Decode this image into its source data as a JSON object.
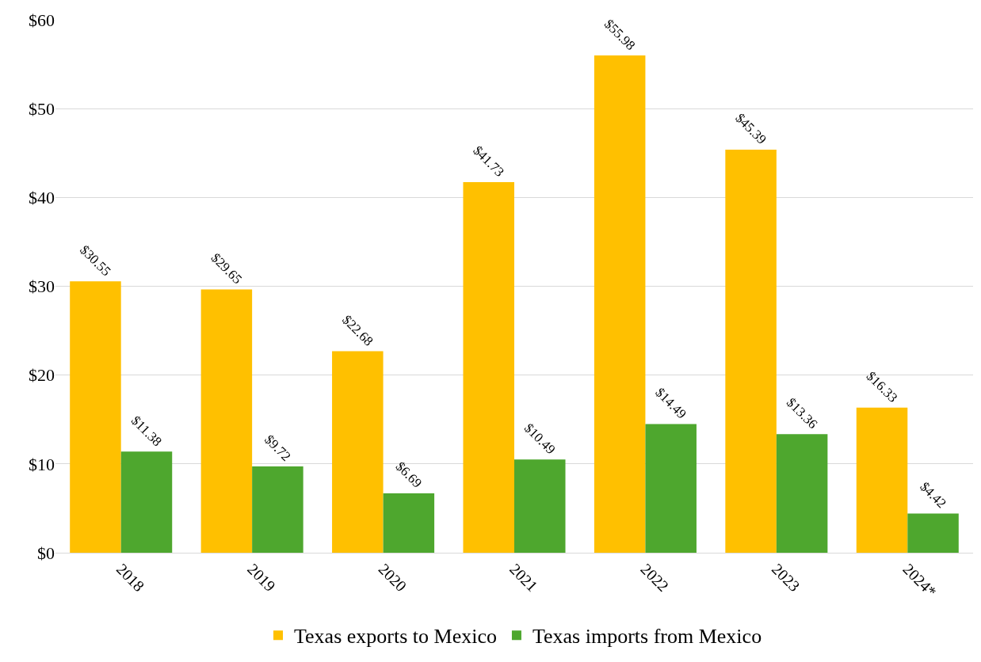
{
  "chart_data": {
    "type": "bar",
    "categories": [
      "2018",
      "2019",
      "2020",
      "2021",
      "2022",
      "2023",
      "2024*"
    ],
    "series": [
      {
        "name": "Texas exports to Mexico",
        "color": "#ffc000",
        "values": [
          30.55,
          29.65,
          22.68,
          41.73,
          55.98,
          45.39,
          16.33
        ],
        "value_labels": [
          "$30.55",
          "$29.65",
          "$22.68",
          "$41.73",
          "$55.98",
          "$45.39",
          "$16.33"
        ]
      },
      {
        "name": "Texas imports from Mexico",
        "color": "#4ea72e",
        "values": [
          11.38,
          9.72,
          6.69,
          10.49,
          14.49,
          13.36,
          4.42
        ],
        "value_labels": [
          "$11.38",
          "$9.72",
          "$6.69",
          "$10.49",
          "$14.49",
          "$13.36",
          "$4.42"
        ]
      }
    ],
    "ylim": [
      0,
      60
    ],
    "yticks": [
      {
        "value": 0,
        "label": "$0"
      },
      {
        "value": 10,
        "label": "$10"
      },
      {
        "value": 20,
        "label": "$20"
      },
      {
        "value": 30,
        "label": "$30"
      },
      {
        "value": 40,
        "label": "$40"
      },
      {
        "value": 50,
        "label": "$50"
      },
      {
        "value": 60,
        "label": "$60"
      }
    ],
    "grid": "y",
    "legend": "bottom"
  }
}
